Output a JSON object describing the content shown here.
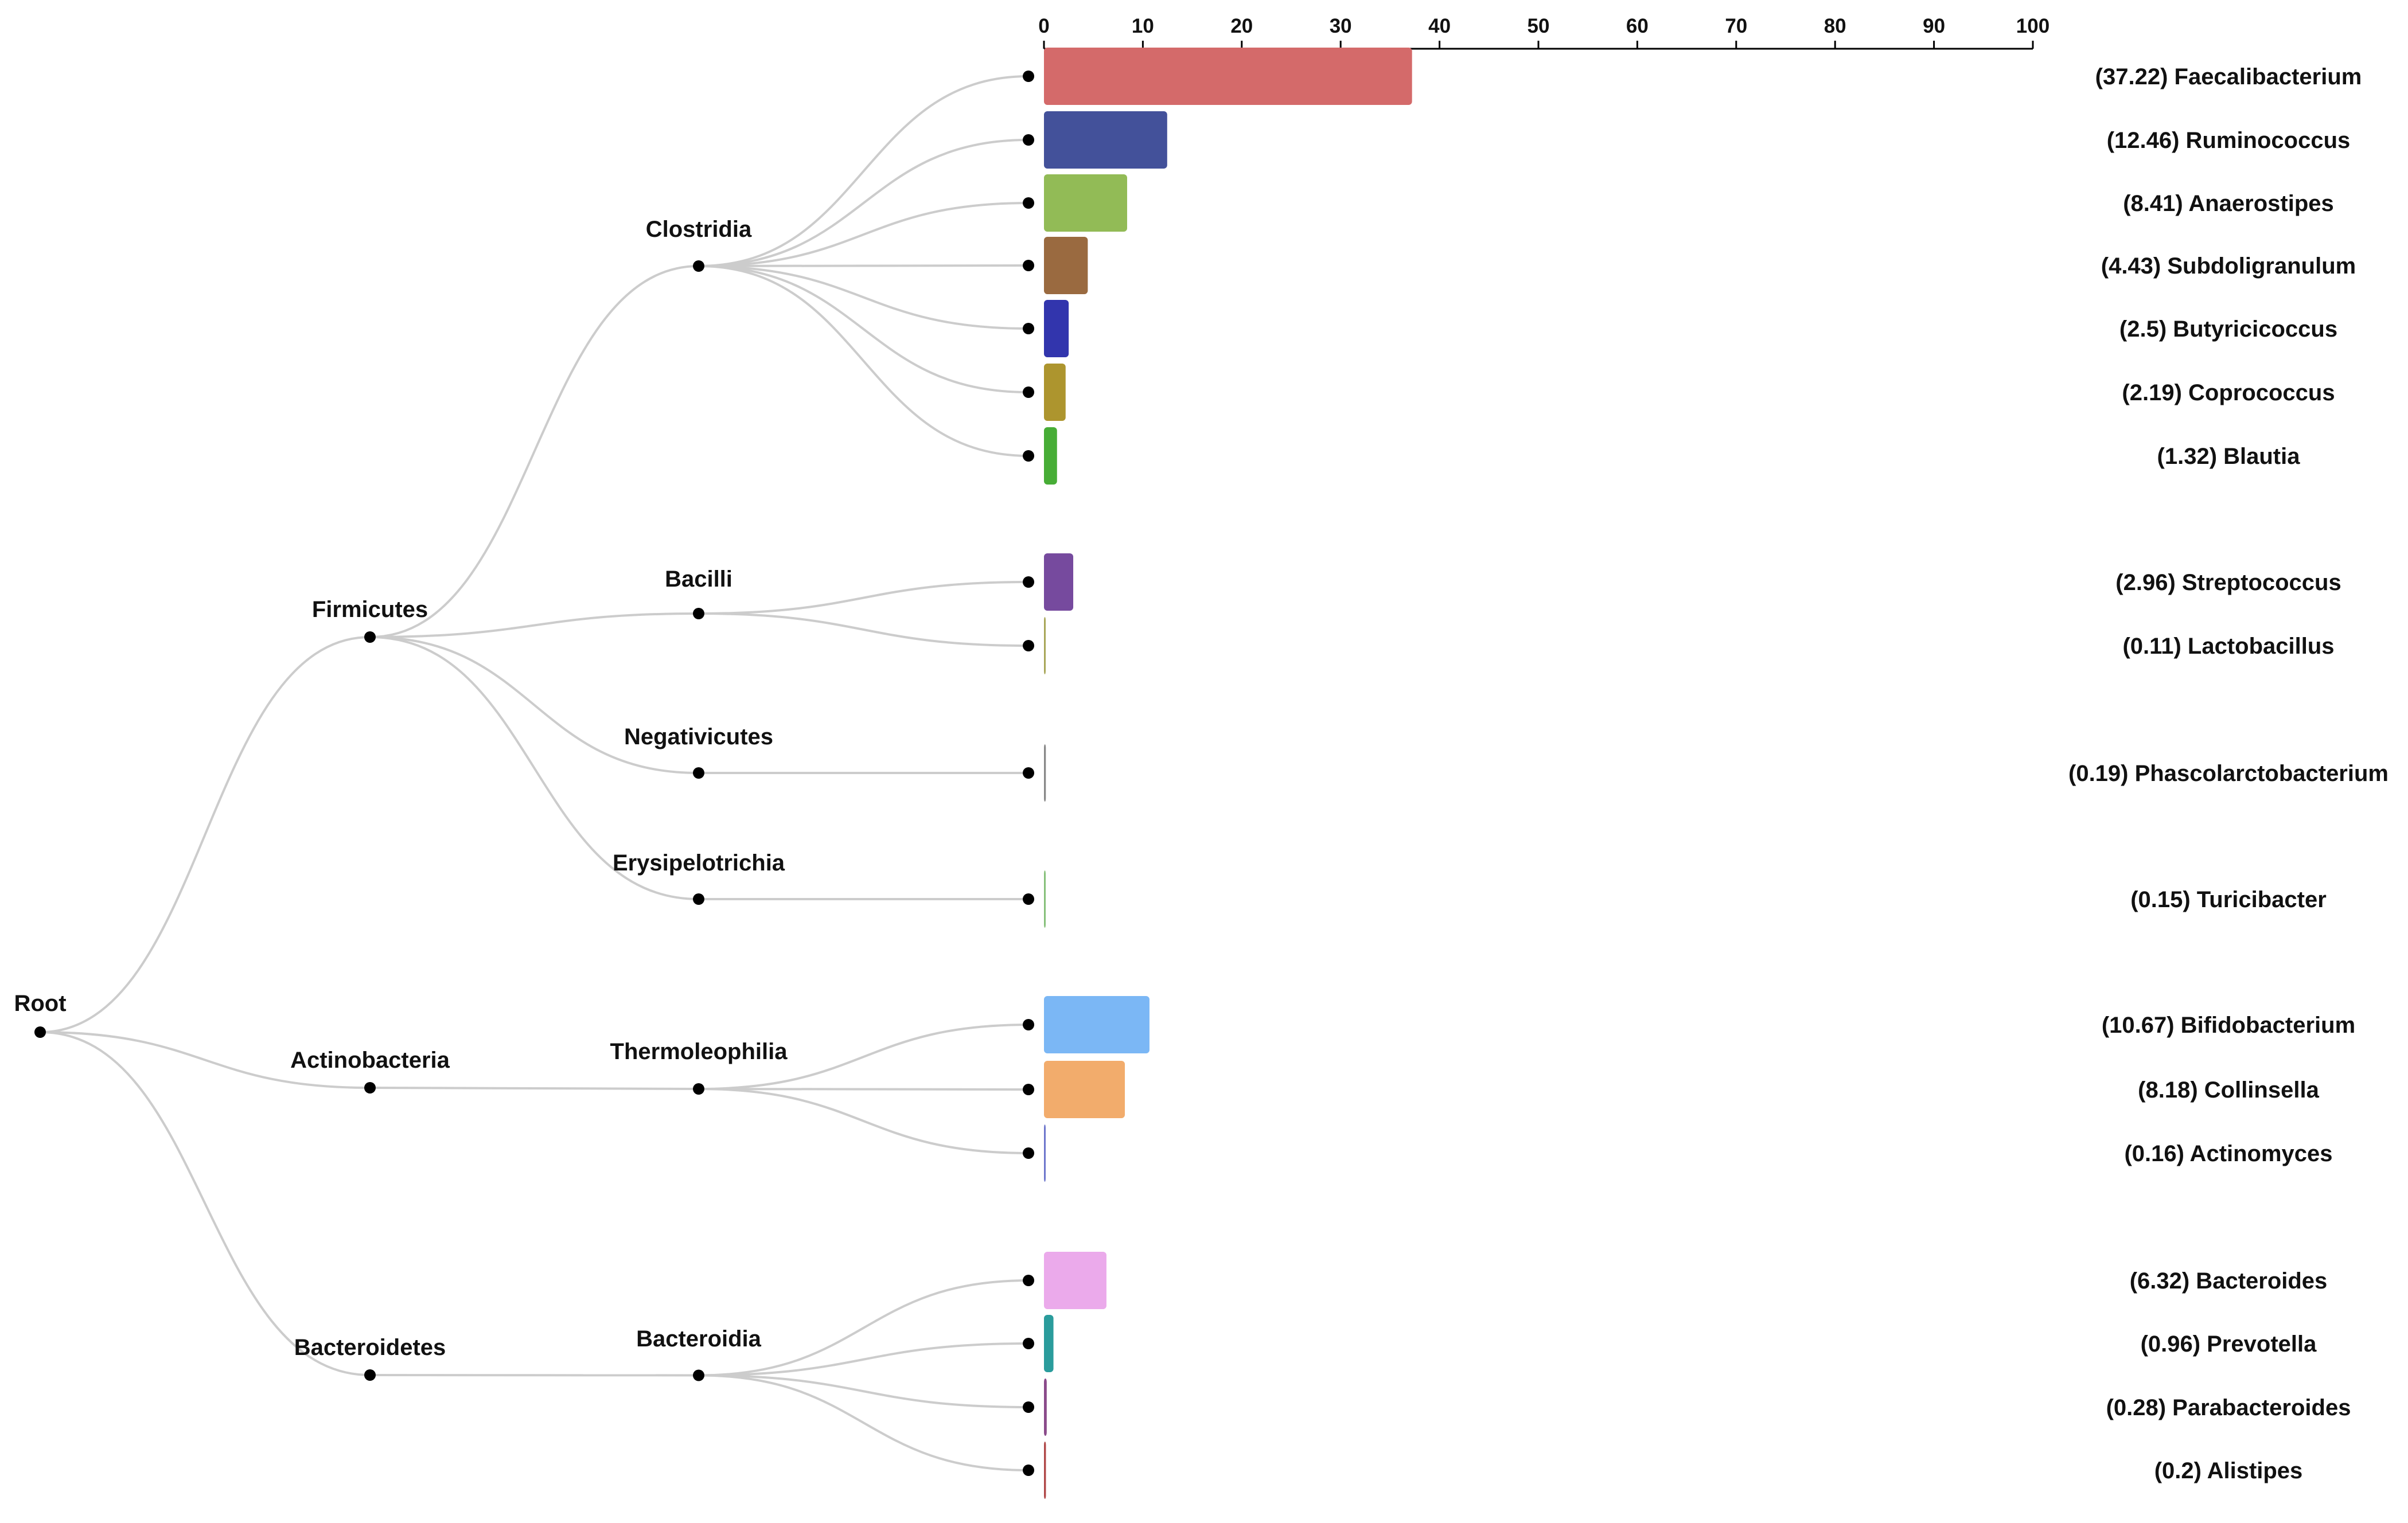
{
  "chart_data": {
    "type": "bar",
    "title": "",
    "xlabel": "",
    "ylabel": "",
    "xlim": [
      0,
      100
    ],
    "ticks": [
      0,
      10,
      20,
      30,
      40,
      50,
      60,
      70,
      80,
      90,
      100
    ],
    "root": {
      "label": "Root"
    },
    "phyla": [
      {
        "label": "Firmicutes"
      },
      {
        "label": "Actinobacteria"
      },
      {
        "label": "Bacteroidetes"
      }
    ],
    "classes": [
      {
        "label": "Clostridia",
        "phylum": 0
      },
      {
        "label": "Bacilli",
        "phylum": 0
      },
      {
        "label": "Negativicutes",
        "phylum": 0
      },
      {
        "label": "Erysipelotrichia",
        "phylum": 0
      },
      {
        "label": "Thermoleophilia",
        "phylum": 1
      },
      {
        "label": "Bacteroidia",
        "phylum": 2
      }
    ],
    "genera": [
      {
        "name": "Faecalibacterium",
        "value": 37.22,
        "value_text": "37.22",
        "class": 0,
        "color": "#d46a6a"
      },
      {
        "name": "Ruminococcus",
        "value": 12.46,
        "value_text": "12.46",
        "class": 0,
        "color": "#43519a"
      },
      {
        "name": "Anaerostipes",
        "value": 8.41,
        "value_text": "8.41",
        "class": 0,
        "color": "#92bb56"
      },
      {
        "name": "Subdoligranulum",
        "value": 4.43,
        "value_text": "4.43",
        "class": 0,
        "color": "#9a6a40"
      },
      {
        "name": "Butyricicoccus",
        "value": 2.5,
        "value_text": "2.5",
        "class": 0,
        "color": "#3235ad"
      },
      {
        "name": "Coprococcus",
        "value": 2.19,
        "value_text": "2.19",
        "class": 0,
        "color": "#ad952e"
      },
      {
        "name": "Blautia",
        "value": 1.32,
        "value_text": "1.32",
        "class": 0,
        "color": "#47ad36"
      },
      {
        "name": "Streptococcus",
        "value": 2.96,
        "value_text": "2.96",
        "class": 1,
        "color": "#764a9e"
      },
      {
        "name": "Lactobacillus",
        "value": 0.11,
        "value_text": "0.11",
        "class": 1,
        "color": "#a8a658"
      },
      {
        "name": "Phascolarctobacterium",
        "value": 0.19,
        "value_text": "0.19",
        "class": 2,
        "color": "#888888"
      },
      {
        "name": "Turicibacter",
        "value": 0.15,
        "value_text": "0.15",
        "class": 3,
        "color": "#86c07a"
      },
      {
        "name": "Bifidobacterium",
        "value": 10.67,
        "value_text": "10.67",
        "class": 4,
        "color": "#7bb7f5"
      },
      {
        "name": "Collinsella",
        "value": 8.18,
        "value_text": "8.18",
        "class": 4,
        "color": "#f2ac6c"
      },
      {
        "name": "Actinomyces",
        "value": 0.16,
        "value_text": "0.16",
        "class": 4,
        "color": "#6d76cc"
      },
      {
        "name": "Bacteroides",
        "value": 6.32,
        "value_text": "6.32",
        "class": 5,
        "color": "#ebaaeb"
      },
      {
        "name": "Prevotella",
        "value": 0.96,
        "value_text": "0.96",
        "class": 5,
        "color": "#2a9c9c"
      },
      {
        "name": "Parabacteroides",
        "value": 0.28,
        "value_text": "0.28",
        "class": 5,
        "color": "#8a4a8a"
      },
      {
        "name": "Alistipes",
        "value": 0.2,
        "value_text": "0.2",
        "class": 5,
        "color": "#b04848"
      }
    ]
  }
}
